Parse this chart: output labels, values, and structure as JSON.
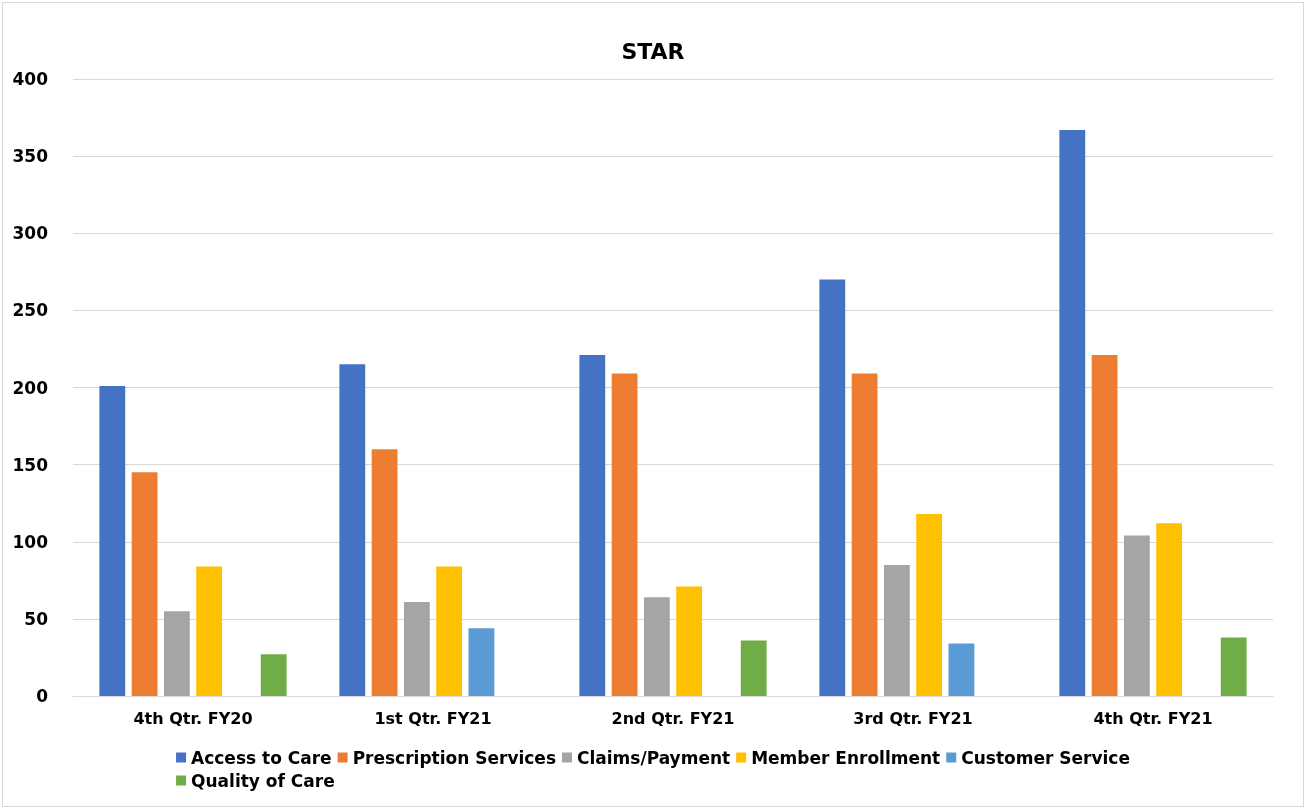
{
  "chart_data": {
    "type": "bar",
    "title": "STAR",
    "categories": [
      "4th Qtr. FY20",
      "1st Qtr. FY21",
      "2nd Qtr. FY21",
      "3rd Qtr. FY21",
      "4th Qtr. FY21"
    ],
    "series": [
      {
        "name": "Access to Care",
        "color": "#4472c4",
        "values": [
          201,
          215,
          221,
          270,
          367
        ]
      },
      {
        "name": "Prescription Services",
        "color": "#ed7d31",
        "values": [
          145,
          160,
          209,
          209,
          221
        ]
      },
      {
        "name": "Claims/Payment",
        "color": "#a5a5a5",
        "values": [
          55,
          61,
          64,
          85,
          104
        ]
      },
      {
        "name": "Member Enrollment",
        "color": "#ffc000",
        "values": [
          84,
          84,
          71,
          118,
          112
        ]
      },
      {
        "name": "Customer Service",
        "color": "#5b9bd5",
        "values": [
          null,
          44,
          null,
          34,
          null
        ]
      },
      {
        "name": "Quality of Care",
        "color": "#70ad47",
        "values": [
          27,
          null,
          36,
          null,
          38
        ]
      }
    ],
    "ylim": [
      0,
      400
    ],
    "yticks": [
      0,
      50,
      100,
      150,
      200,
      250,
      300,
      350,
      400
    ],
    "grid": "y",
    "legend": "bottom"
  }
}
